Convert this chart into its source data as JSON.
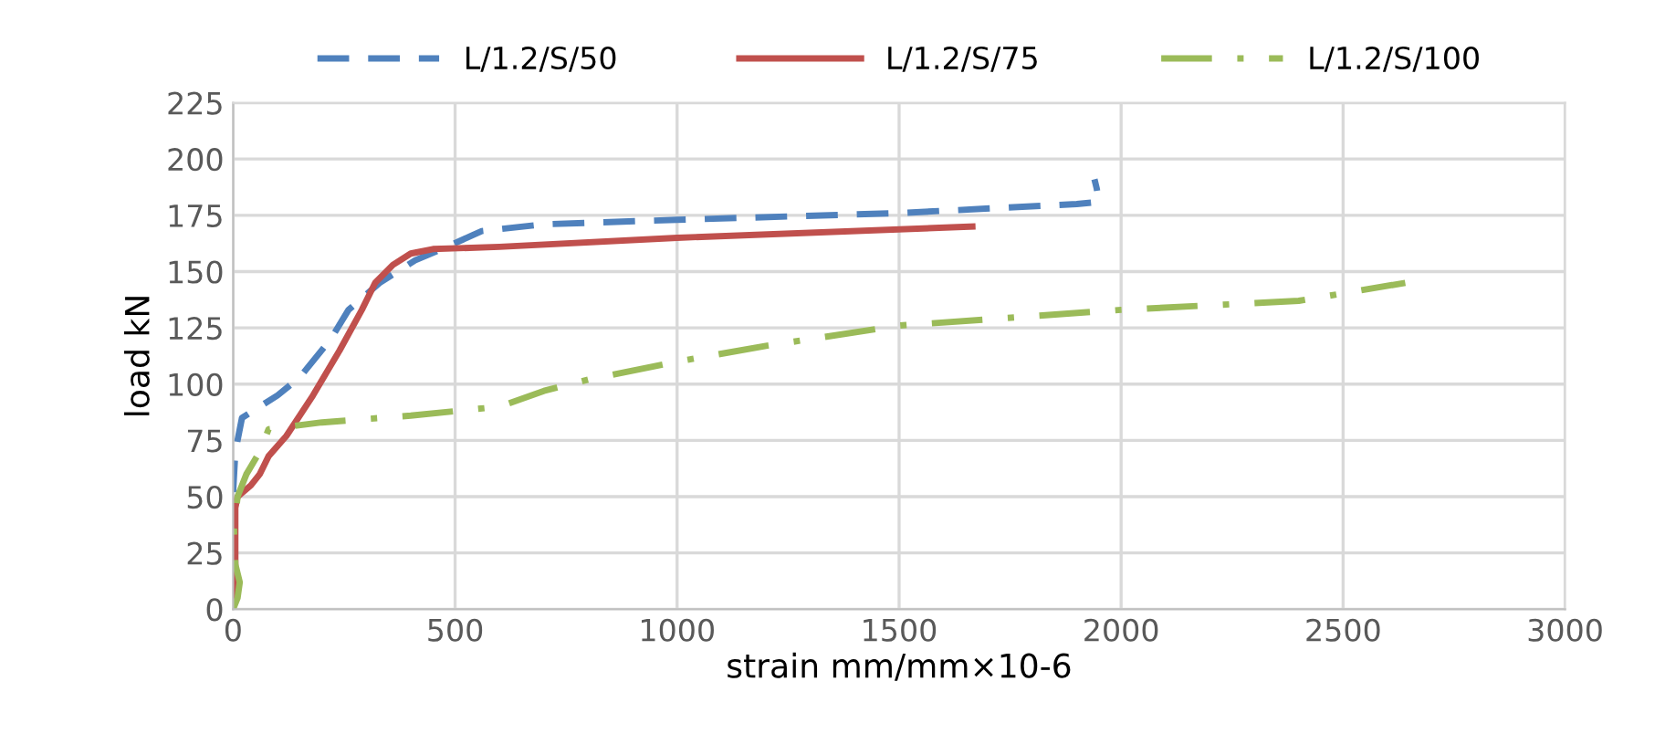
{
  "chart_data": {
    "type": "line",
    "xlabel": "strain mm/mm×10-6",
    "ylabel": "load kN",
    "xlim": [
      0,
      3000
    ],
    "ylim": [
      0,
      225
    ],
    "xticks": [
      0,
      500,
      1000,
      1500,
      2000,
      2500,
      3000
    ],
    "yticks": [
      0,
      25,
      50,
      75,
      100,
      125,
      150,
      175,
      200,
      225
    ],
    "grid": true,
    "legend": "top",
    "series": [
      {
        "name": "L/1.2/S/50",
        "color": "#4f81bd",
        "line_style": "dashed",
        "x": [
          0,
          5,
          20,
          100,
          150,
          220,
          260,
          330,
          410,
          470,
          560,
          700,
          1000,
          1500,
          1900,
          1950,
          1945,
          1940
        ],
        "values": [
          52,
          70,
          85,
          95,
          103,
          120,
          133,
          145,
          155,
          160,
          168,
          171,
          173,
          176,
          180,
          181,
          187,
          191
        ]
      },
      {
        "name": "L/1.2/S/75",
        "color": "#c0504d",
        "line_style": "solid",
        "x": [
          0,
          5,
          5,
          10,
          40,
          60,
          80,
          120,
          180,
          240,
          290,
          320,
          360,
          400,
          450,
          600,
          1000,
          1665
        ],
        "values": [
          0,
          20,
          45,
          50,
          55,
          60,
          68,
          77,
          95,
          115,
          133,
          145,
          153,
          158,
          160,
          161,
          165,
          170
        ]
      },
      {
        "name": "L/1.2/S/100",
        "color": "#9bbb59",
        "line_style": "dashdot",
        "x": [
          0,
          10,
          15,
          5,
          2,
          10,
          30,
          60,
          80,
          200,
          400,
          600,
          700,
          800,
          1000,
          1200,
          1500,
          2000,
          2400,
          2640
        ],
        "values": [
          0,
          5,
          12,
          20,
          35,
          50,
          60,
          70,
          80,
          83,
          86,
          90,
          97,
          102,
          110,
          117,
          126,
          133,
          137,
          145
        ]
      }
    ]
  }
}
